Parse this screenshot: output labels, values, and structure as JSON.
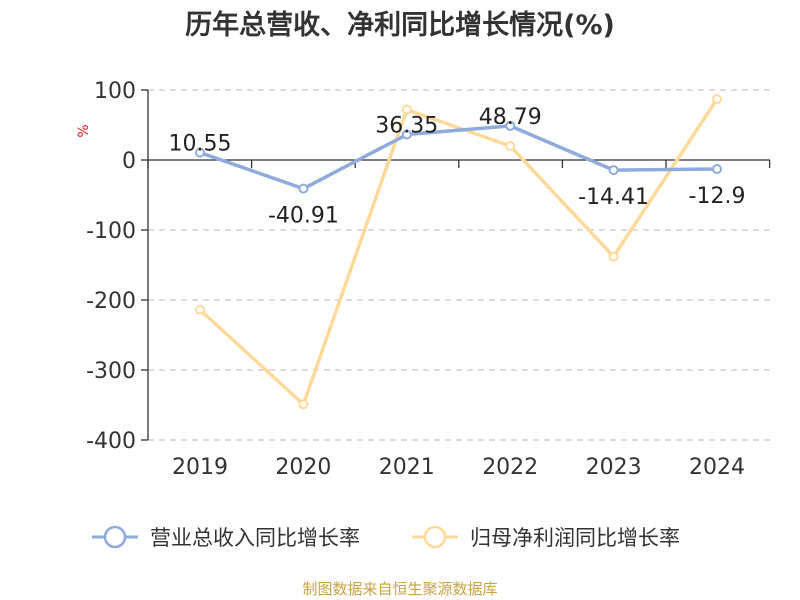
{
  "chart_data": {
    "type": "line",
    "title": "历年总营收、净利同比增长情况(%)",
    "ylabel": "%",
    "categories": [
      "2019",
      "2020",
      "2021",
      "2022",
      "2023",
      "2024"
    ],
    "ylim": [
      -400,
      100
    ],
    "yticks": [
      100,
      0,
      -100,
      -200,
      -300,
      -400
    ],
    "grid": true,
    "legend_position": "bottom",
    "series": [
      {
        "name": "营业总收入同比增长率",
        "color": "#8faadc",
        "values": [
          10.55,
          -40.91,
          36.35,
          48.79,
          -14.41,
          -12.9
        ],
        "data_labels": [
          "10.55",
          "-40.91",
          "36.35",
          "48.79",
          "-14.41",
          "-12.9"
        ]
      },
      {
        "name": "归母净利润同比增长率",
        "color": "#ffd99a",
        "values": [
          -214,
          -349,
          72,
          20,
          -138,
          87
        ]
      }
    ],
    "source": "制图数据来自恒生聚源数据库"
  }
}
